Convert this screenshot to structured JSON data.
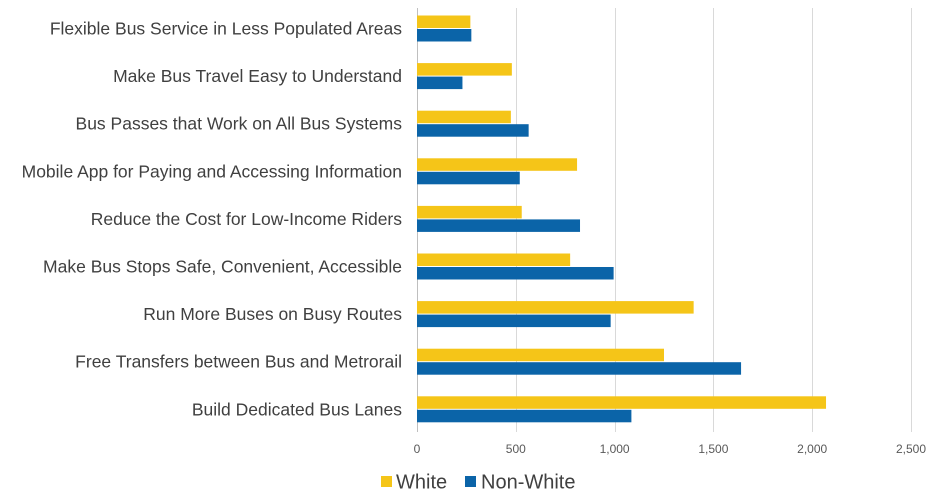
{
  "chart_data": {
    "type": "bar",
    "orientation": "horizontal",
    "categories": [
      "Flexible Bus Service in Less Populated Areas",
      "Make Bus Travel Easy to Understand",
      "Bus Passes that Work on All Bus Systems",
      "Mobile App for Paying and Accessing Information",
      "Reduce the Cost for Low-Income Riders",
      "Make Bus Stops Safe, Convenient, Accessible",
      "Run More Buses on Busy Routes",
      "Free Transfers between Bus and Metrorail",
      "Build Dedicated Bus Lanes"
    ],
    "series": [
      {
        "name": "White",
        "color": "#F5C518",
        "values": [
          270,
          480,
          475,
          810,
          530,
          775,
          1400,
          1250,
          2070
        ]
      },
      {
        "name": "Non-White",
        "color": "#0B64A8",
        "values": [
          275,
          230,
          565,
          520,
          825,
          995,
          980,
          1640,
          1085
        ]
      }
    ],
    "xlim": [
      0,
      2500
    ],
    "xticks": [
      0,
      500,
      1000,
      1500,
      2000,
      2500
    ],
    "xtick_labels": [
      "0",
      "500",
      "1,000",
      "1,500",
      "2,000",
      "2,500"
    ],
    "grid": "vertical",
    "legend": "bottom-center",
    "title": "",
    "xlabel": "",
    "ylabel": ""
  }
}
